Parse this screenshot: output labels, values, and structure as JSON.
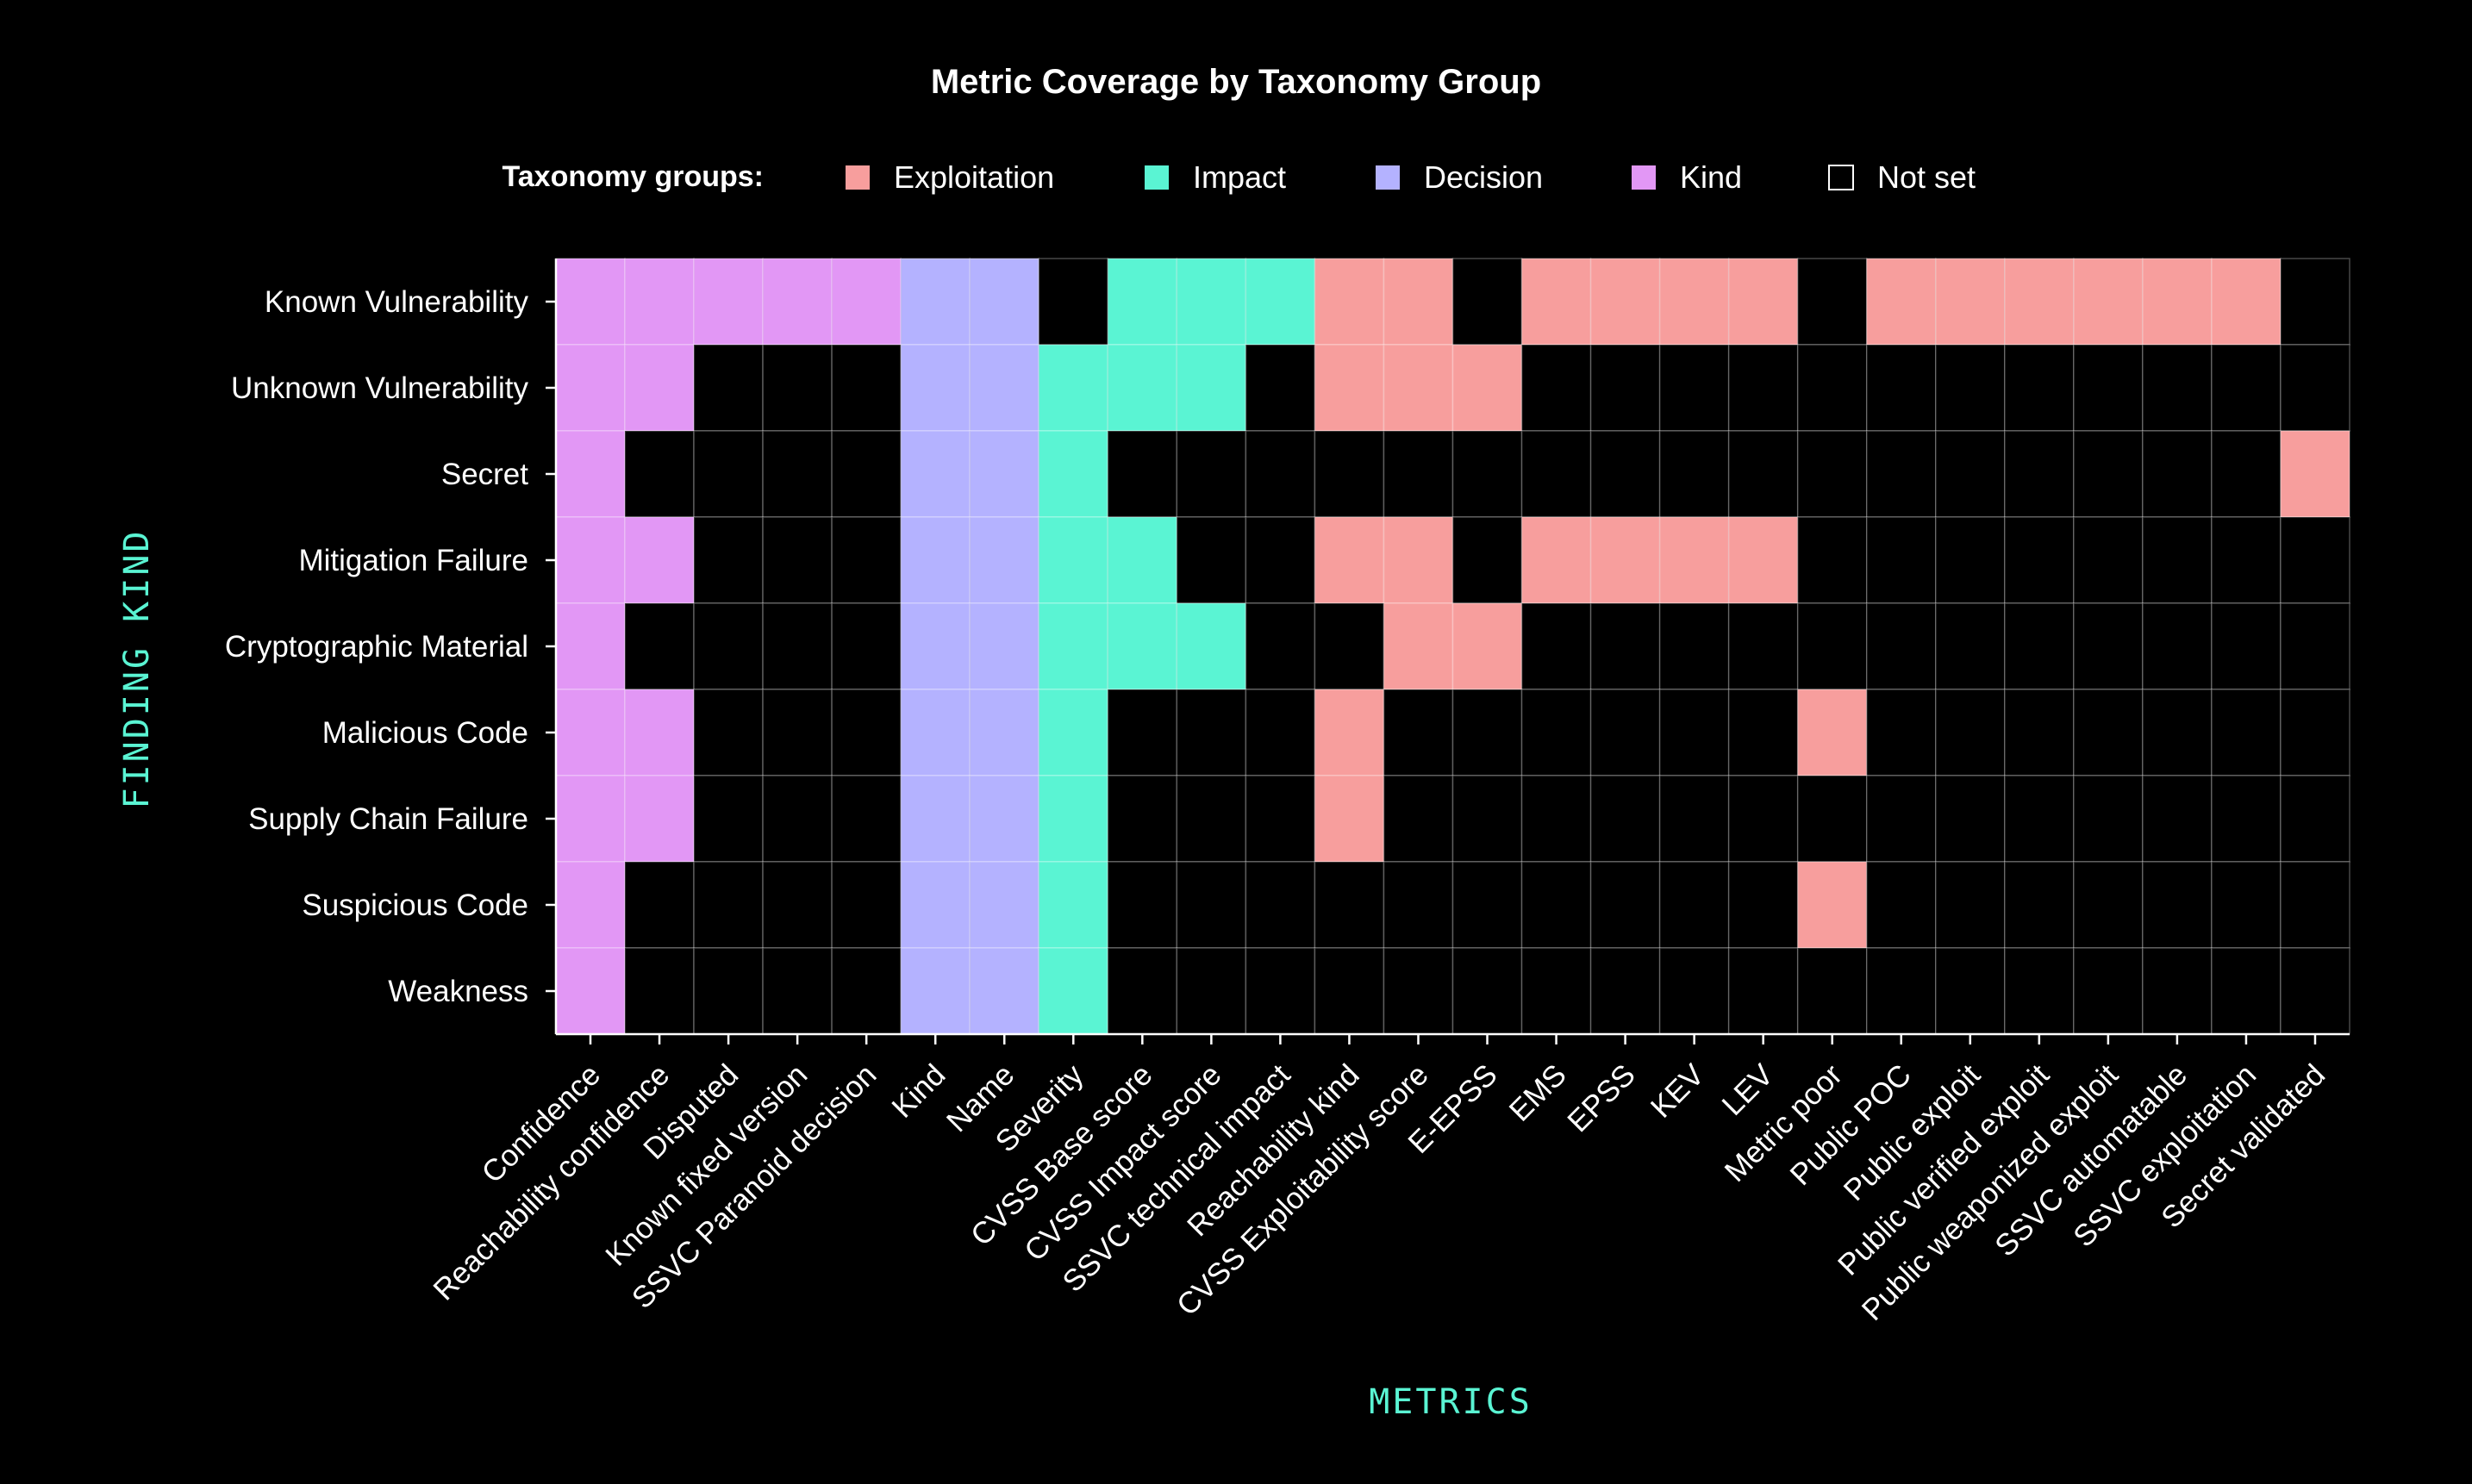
{
  "chart_data": {
    "type": "heatmap",
    "title": "Metric Coverage by Taxonomy Group",
    "xlabel": "METRICS",
    "ylabel": "FINDING KIND",
    "legend": {
      "heading": "Taxonomy groups:",
      "position": "top-center",
      "entries": [
        {
          "key": "E",
          "label": "Exploitation",
          "color": "#f79e9d"
        },
        {
          "key": "I",
          "label": "Impact",
          "color": "#5af4d3"
        },
        {
          "key": "D",
          "label": "Decision",
          "color": "#b4b2ff"
        },
        {
          "key": "K",
          "label": "Kind",
          "color": "#e297f5"
        },
        {
          "key": "N",
          "label": "Not set",
          "color": "#000000"
        }
      ]
    },
    "axis_title_color": "#5af4d3",
    "grid_color": "#555555",
    "columns": [
      "Confidence",
      "Reachability confidence",
      "Disputed",
      "Known fixed version",
      "SSVC Paranoid decision",
      "Kind",
      "Name",
      "Severity",
      "CVSS Base score",
      "CVSS Impact score",
      "SSVC technical impact",
      "Reachability kind",
      "CVSS Exploitability score",
      "E-EPSS",
      "EMS",
      "EPSS",
      "KEV",
      "LEV",
      "Metric poor",
      "Public POC",
      "Public exploit",
      "Public verified exploit",
      "Public weaponized exploit",
      "SSVC automatable",
      "SSVC exploitation",
      "Secret validated"
    ],
    "rows": [
      {
        "name": "Known Vulnerability",
        "cells": [
          "K",
          "K",
          "K",
          "K",
          "K",
          "D",
          "D",
          "N",
          "I",
          "I",
          "I",
          "E",
          "E",
          "N",
          "E",
          "E",
          "E",
          "E",
          "N",
          "E",
          "E",
          "E",
          "E",
          "E",
          "E",
          "N"
        ]
      },
      {
        "name": "Unknown Vulnerability",
        "cells": [
          "K",
          "K",
          "N",
          "N",
          "N",
          "D",
          "D",
          "I",
          "I",
          "I",
          "N",
          "E",
          "E",
          "E",
          "N",
          "N",
          "N",
          "N",
          "N",
          "N",
          "N",
          "N",
          "N",
          "N",
          "N",
          "N"
        ]
      },
      {
        "name": "Secret",
        "cells": [
          "K",
          "N",
          "N",
          "N",
          "N",
          "D",
          "D",
          "I",
          "N",
          "N",
          "N",
          "N",
          "N",
          "N",
          "N",
          "N",
          "N",
          "N",
          "N",
          "N",
          "N",
          "N",
          "N",
          "N",
          "N",
          "E"
        ]
      },
      {
        "name": "Mitigation Failure",
        "cells": [
          "K",
          "K",
          "N",
          "N",
          "N",
          "D",
          "D",
          "I",
          "I",
          "N",
          "N",
          "E",
          "E",
          "N",
          "E",
          "E",
          "E",
          "E",
          "N",
          "N",
          "N",
          "N",
          "N",
          "N",
          "N",
          "N"
        ]
      },
      {
        "name": "Cryptographic Material",
        "cells": [
          "K",
          "N",
          "N",
          "N",
          "N",
          "D",
          "D",
          "I",
          "I",
          "I",
          "N",
          "N",
          "E",
          "E",
          "N",
          "N",
          "N",
          "N",
          "N",
          "N",
          "N",
          "N",
          "N",
          "N",
          "N",
          "N"
        ]
      },
      {
        "name": "Malicious Code",
        "cells": [
          "K",
          "K",
          "N",
          "N",
          "N",
          "D",
          "D",
          "I",
          "N",
          "N",
          "N",
          "E",
          "N",
          "N",
          "N",
          "N",
          "N",
          "N",
          "E",
          "N",
          "N",
          "N",
          "N",
          "N",
          "N",
          "N"
        ]
      },
      {
        "name": "Supply Chain Failure",
        "cells": [
          "K",
          "K",
          "N",
          "N",
          "N",
          "D",
          "D",
          "I",
          "N",
          "N",
          "N",
          "E",
          "N",
          "N",
          "N",
          "N",
          "N",
          "N",
          "N",
          "N",
          "N",
          "N",
          "N",
          "N",
          "N",
          "N"
        ]
      },
      {
        "name": "Suspicious Code",
        "cells": [
          "K",
          "N",
          "N",
          "N",
          "N",
          "D",
          "D",
          "I",
          "N",
          "N",
          "N",
          "N",
          "N",
          "N",
          "N",
          "N",
          "N",
          "N",
          "E",
          "N",
          "N",
          "N",
          "N",
          "N",
          "N",
          "N"
        ]
      },
      {
        "name": "Weakness",
        "cells": [
          "K",
          "N",
          "N",
          "N",
          "N",
          "D",
          "D",
          "I",
          "N",
          "N",
          "N",
          "N",
          "N",
          "N",
          "N",
          "N",
          "N",
          "N",
          "N",
          "N",
          "N",
          "N",
          "N",
          "N",
          "N",
          "N"
        ]
      }
    ]
  }
}
